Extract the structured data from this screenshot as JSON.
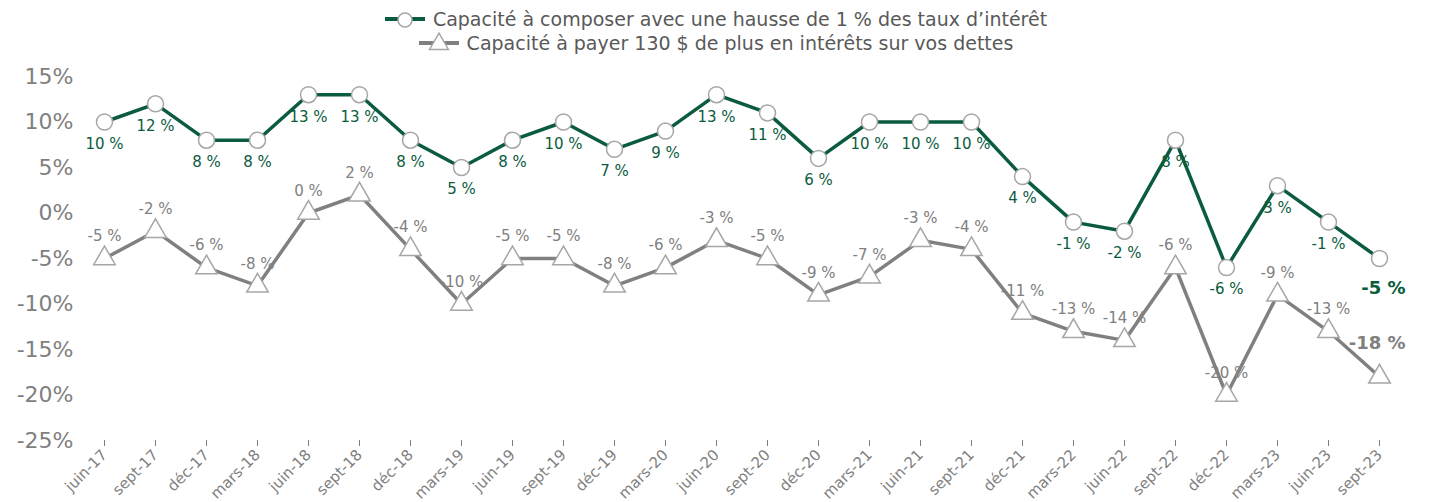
{
  "chart_data": {
    "type": "line",
    "categories": [
      "juin-17",
      "sept-17",
      "déc-17",
      "mars-18",
      "juin-18",
      "sept-18",
      "déc-18",
      "mars-19",
      "juin-19",
      "sept-19",
      "déc-19",
      "mars-20",
      "juin-20",
      "sept-20",
      "déc-20",
      "mars-21",
      "juin-21",
      "sept-21",
      "déc-21",
      "mars-22",
      "juin-22",
      "sept-22",
      "déc-22",
      "mars-23",
      "juin-23",
      "sept-23"
    ],
    "series": [
      {
        "name": "Capacité à composer avec une hausse de 1 % des taux d’intérêt",
        "color": "#0b5c3e",
        "marker": "circle",
        "values": [
          10,
          12,
          8,
          8,
          13,
          13,
          8,
          5,
          8,
          10,
          7,
          9,
          13,
          11,
          6,
          10,
          10,
          10,
          4,
          -1,
          -2,
          8,
          -6,
          3,
          -1,
          -5
        ],
        "value_labels": [
          "10 %",
          "12 %",
          "8 %",
          "8 %",
          "13 %",
          "13 %",
          "8 %",
          "5 %",
          "8 %",
          "10 %",
          "7 %",
          "9 %",
          "13 %",
          "11 %",
          "6 %",
          "10 %",
          "10 %",
          "10 %",
          "4 %",
          "-1 %",
          "-2 %",
          "8 %",
          "-6 %",
          "3 %",
          "-1 %",
          "-5 %"
        ]
      },
      {
        "name": "Capacité à payer 130 $ de plus en intérêts sur vos dettes",
        "color": "#808080",
        "marker": "triangle",
        "values": [
          -5,
          -2,
          -6,
          -8,
          0,
          2,
          -4,
          -10,
          -5,
          -5,
          -8,
          -6,
          -3,
          -5,
          -9,
          -7,
          -3,
          -4,
          -11,
          -13,
          -14,
          -6,
          -20,
          -9,
          -13,
          -18
        ],
        "value_labels": [
          "-5 %",
          "-2 %",
          "-6 %",
          "-8 %",
          "0 %",
          "2 %",
          "-4 %",
          "-10 %",
          "-5 %",
          "-5 %",
          "-8 %",
          "-6 %",
          "-3 %",
          "-5 %",
          "-9 %",
          "-7 %",
          "-3 %",
          "-4 %",
          "-11 %",
          "-13 %",
          "-14 %",
          "-6 %",
          "-20 %",
          "-9 %",
          "-13 %",
          "-18 %"
        ]
      }
    ],
    "ylim": [
      -25,
      15
    ],
    "yticks": [
      {
        "value": -25,
        "label": "-25%"
      },
      {
        "value": -20,
        "label": "-20%"
      },
      {
        "value": -15,
        "label": "-15%"
      },
      {
        "value": -10,
        "label": "-10%"
      },
      {
        "value": -5,
        "label": "-5%"
      },
      {
        "value": 0,
        "label": "0%"
      },
      {
        "value": 5,
        "label": "5%"
      },
      {
        "value": 10,
        "label": "10%"
      },
      {
        "value": 15,
        "label": "15%"
      }
    ],
    "data_labels": true,
    "legend": "top",
    "grid": false
  }
}
